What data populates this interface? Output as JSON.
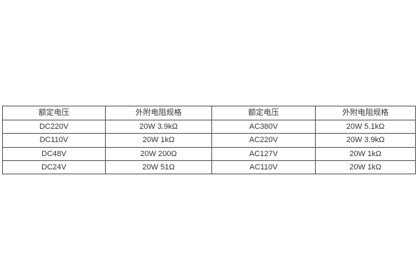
{
  "table": {
    "headers": [
      "额定电压",
      "外附电阻规格",
      "额定电压",
      "外附电阻规格"
    ],
    "rows": [
      [
        "DC220V",
        "20W 3.9kΩ",
        "AC380V",
        "20W 5.1kΩ"
      ],
      [
        "DC110V",
        "20W 1kΩ",
        "AC220V",
        "20W 3.9kΩ"
      ],
      [
        "DC48V",
        "20W 200Ω",
        "AC127V",
        "20W 1kΩ"
      ],
      [
        "DC24V",
        "20W 51Ω",
        "AC110V",
        "20W 1kΩ"
      ]
    ],
    "colors": {
      "border": "#4d4d4d",
      "text": "#333333",
      "background": "#ffffff"
    }
  }
}
